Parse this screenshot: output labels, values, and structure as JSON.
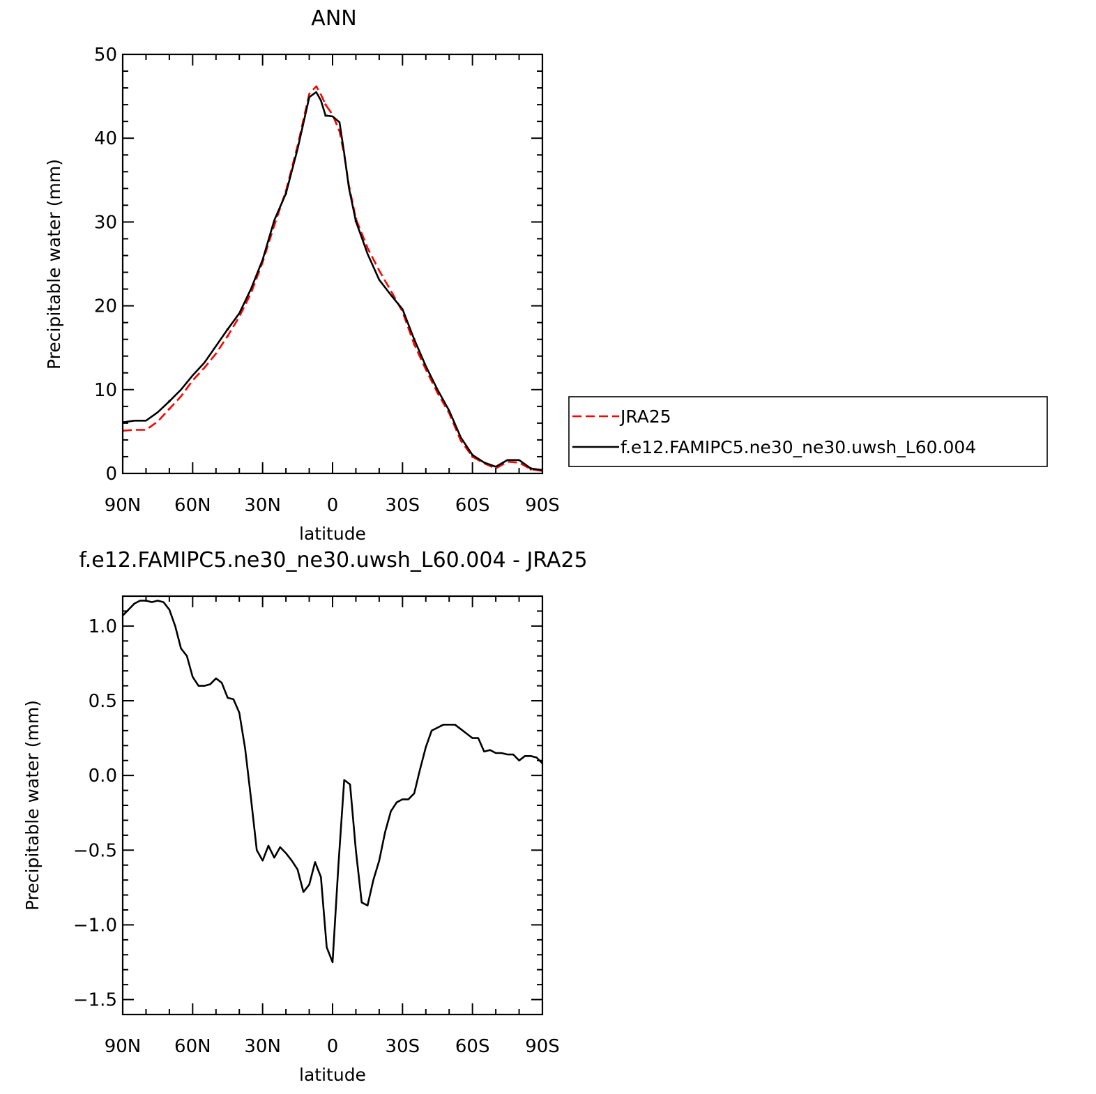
{
  "chart_data": [
    {
      "type": "line",
      "title": "ANN",
      "xlabel": "latitude",
      "ylabel": "Precipitable water (mm)",
      "xlim": [
        90,
        -90
      ],
      "ylim": [
        0,
        50
      ],
      "x_ticks": [
        {
          "value": 90,
          "label": "90N"
        },
        {
          "value": 60,
          "label": "60N"
        },
        {
          "value": 30,
          "label": "30N"
        },
        {
          "value": 0,
          "label": "0"
        },
        {
          "value": -30,
          "label": "30S"
        },
        {
          "value": -60,
          "label": "60S"
        },
        {
          "value": -90,
          "label": "90S"
        }
      ],
      "y_ticks": [
        {
          "value": 0,
          "label": "0"
        },
        {
          "value": 10,
          "label": "10"
        },
        {
          "value": 20,
          "label": "20"
        },
        {
          "value": 30,
          "label": "30"
        },
        {
          "value": 40,
          "label": "40"
        },
        {
          "value": 50,
          "label": "50"
        }
      ],
      "legend_position": "right",
      "series": [
        {
          "name": "JRA25",
          "color": "#ff0000",
          "style": "dashed",
          "x": [
            90,
            85,
            80,
            75,
            70,
            65,
            60,
            55,
            50,
            45,
            40,
            35,
            30,
            25,
            20,
            15,
            10,
            7,
            5,
            3,
            0,
            -3,
            -5,
            -7,
            -10,
            -15,
            -20,
            -25,
            -30,
            -35,
            -40,
            -45,
            -50,
            -55,
            -60,
            -65,
            -70,
            -75,
            -80,
            -85,
            -90
          ],
          "y": [
            5.1,
            5.2,
            5.2,
            6.2,
            7.7,
            9.2,
            11.1,
            12.6,
            14.3,
            16.4,
            18.7,
            21.5,
            25.2,
            29.6,
            33.7,
            39.1,
            45.3,
            46.2,
            45.2,
            44.0,
            42.8,
            40.8,
            38.0,
            34.4,
            30.4,
            26.9,
            24.2,
            21.8,
            19.3,
            15.4,
            12.4,
            9.6,
            7.2,
            3.9,
            2.0,
            1.2,
            0.6,
            1.4,
            1.3,
            0.5,
            0.3
          ],
          "marks": [
            0,
            4,
            9,
            14,
            19,
            24,
            29,
            34,
            39,
            40
          ]
        },
        {
          "name": "f.e12.FAMIPC5.ne30_ne30.uwsh_L60.004",
          "color": "#000000",
          "style": "solid",
          "x": [
            90,
            85,
            80,
            75,
            70,
            65,
            60,
            55,
            50,
            45,
            40,
            35,
            30,
            25,
            20,
            15,
            10,
            7,
            5,
            3,
            0,
            -3,
            -5,
            -7,
            -10,
            -15,
            -20,
            -25,
            -30,
            -35,
            -40,
            -45,
            -50,
            -55,
            -60,
            -65,
            -70,
            -75,
            -80,
            -85,
            -90
          ],
          "y": [
            6.1,
            6.3,
            6.3,
            7.3,
            8.6,
            10.0,
            11.7,
            13.2,
            15.2,
            17.2,
            19.1,
            22.0,
            25.5,
            30.2,
            33.4,
            38.7,
            44.9,
            45.5,
            44.5,
            42.7,
            42.6,
            41.9,
            38.2,
            34.1,
            30.1,
            26.2,
            23.1,
            21.3,
            19.6,
            16.0,
            12.8,
            10.0,
            7.5,
            4.3,
            2.2,
            1.3,
            0.8,
            1.6,
            1.6,
            0.6,
            0.4
          ],
          "marks": [
            0,
            4,
            9,
            14,
            19,
            24,
            29,
            34,
            39,
            40
          ]
        }
      ]
    },
    {
      "type": "line",
      "title": "f.e12.FAMIPC5.ne30_ne30.uwsh_L60.004 - JRA25",
      "xlabel": "latitude",
      "ylabel": "Precipitable water (mm)",
      "xlim": [
        90,
        -90
      ],
      "ylim": [
        -1.6,
        1.2
      ],
      "x_ticks": [
        {
          "value": 90,
          "label": "90N"
        },
        {
          "value": 60,
          "label": "60N"
        },
        {
          "value": 30,
          "label": "30N"
        },
        {
          "value": 0,
          "label": "0"
        },
        {
          "value": -30,
          "label": "30S"
        },
        {
          "value": -60,
          "label": "60S"
        },
        {
          "value": -90,
          "label": "90S"
        }
      ],
      "y_ticks": [
        {
          "value": -1.5,
          "label": "−1.5"
        },
        {
          "value": -1.0,
          "label": "−1.0"
        },
        {
          "value": -0.5,
          "label": "−0.5"
        },
        {
          "value": 0.0,
          "label": "0.0"
        },
        {
          "value": 0.5,
          "label": "0.5"
        },
        {
          "value": 1.0,
          "label": "1.0"
        }
      ],
      "series": [
        {
          "color": "#000000",
          "style": "solid",
          "x": [
            90,
            87.5,
            85,
            82.5,
            80,
            77.5,
            75,
            72.5,
            70,
            67.5,
            65,
            62.5,
            60,
            57.5,
            55,
            52.5,
            50,
            47.5,
            45,
            42.5,
            40,
            37.5,
            35,
            32.5,
            30,
            27.5,
            25,
            22.5,
            20,
            17.5,
            15,
            12.5,
            10,
            7.5,
            5,
            2.5,
            0,
            -2.5,
            -5,
            -7.5,
            -10,
            -12.5,
            -15,
            -17.5,
            -20,
            -22.5,
            -25,
            -27.5,
            -30,
            -32.5,
            -35,
            -37.5,
            -40,
            -42.5,
            -45,
            -47.5,
            -50,
            -52.5,
            -55,
            -57.5,
            -60,
            -62.5,
            -65,
            -67.5,
            -70,
            -72.5,
            -75,
            -77.5,
            -80,
            -82.5,
            -85,
            -87.5,
            -90
          ],
          "y": [
            1.07,
            1.11,
            1.15,
            1.17,
            1.17,
            1.16,
            1.17,
            1.16,
            1.11,
            1.0,
            0.85,
            0.8,
            0.66,
            0.6,
            0.6,
            0.61,
            0.65,
            0.62,
            0.52,
            0.51,
            0.42,
            0.18,
            -0.15,
            -0.5,
            -0.57,
            -0.47,
            -0.55,
            -0.48,
            -0.52,
            -0.57,
            -0.63,
            -0.78,
            -0.73,
            -0.58,
            -0.68,
            -1.15,
            -1.25,
            -0.6,
            -0.03,
            -0.06,
            -0.5,
            -0.85,
            -0.87,
            -0.7,
            -0.57,
            -0.38,
            -0.24,
            -0.18,
            -0.16,
            -0.16,
            -0.12,
            0.04,
            0.19,
            0.3,
            0.32,
            0.34,
            0.34,
            0.34,
            0.31,
            0.28,
            0.25,
            0.25,
            0.16,
            0.17,
            0.15,
            0.15,
            0.14,
            0.14,
            0.1,
            0.13,
            0.13,
            0.12,
            0.08
          ]
        }
      ]
    }
  ]
}
